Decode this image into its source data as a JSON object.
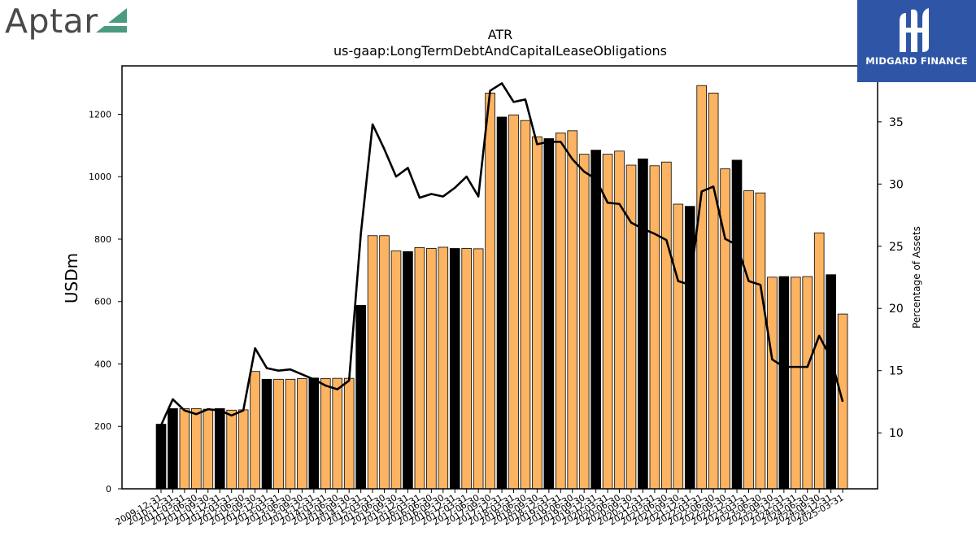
{
  "brand_left": {
    "name": "Aptar",
    "accent": "#4a9b7f"
  },
  "brand_right": {
    "name": "MIDGARD FINANCE",
    "bg": "#2f56a6"
  },
  "colors": {
    "bar_default": "#fdb462",
    "bar_highlight": "#000000",
    "line": "#000000"
  },
  "chart_data": {
    "type": "bar",
    "title": "ATR",
    "subtitle": "us-gaap:LongTermDebtAndCapitalLeaseObligations",
    "ylabel": "USDm",
    "y2label": "Percentage of Assets",
    "ylim": [
      0,
      1355
    ],
    "y2lim": [
      5.5,
      39.5
    ],
    "yticks": [
      0,
      200,
      400,
      600,
      800,
      1000,
      1200
    ],
    "y2ticks": [
      10,
      15,
      20,
      25,
      30,
      35
    ],
    "grid": false,
    "categories": [
      "2009-12-31",
      "2010-12-31",
      "2011-03-31",
      "2011-06-30",
      "2011-09-30",
      "2011-12-31",
      "2012-03-31",
      "2012-06-30",
      "2012-09-30",
      "2012-12-31",
      "2013-03-31",
      "2013-06-30",
      "2013-09-30",
      "2013-12-31",
      "2014-03-31",
      "2014-06-30",
      "2014-09-30",
      "2014-12-31",
      "2015-03-31",
      "2015-06-30",
      "2015-09-30",
      "2015-12-31",
      "2016-03-31",
      "2016-06-30",
      "2016-09-30",
      "2016-12-31",
      "2017-03-31",
      "2017-06-30",
      "2017-09-30",
      "2017-12-31",
      "2018-03-31",
      "2018-06-30",
      "2018-09-30",
      "2018-12-31",
      "2019-03-31",
      "2019-06-30",
      "2019-09-30",
      "2019-12-31",
      "2020-03-31",
      "2020-06-30",
      "2020-09-30",
      "2020-12-31",
      "2021-03-31",
      "2021-06-30",
      "2021-09-30",
      "2021-12-31",
      "2022-03-31",
      "2022-06-30",
      "2022-09-30",
      "2022-12-31",
      "2023-03-31",
      "2023-06-30",
      "2023-09-30",
      "2023-12-31",
      "2024-03-31",
      "2024-06-30",
      "2024-09-30",
      "2024-12-31",
      "2025-03-31"
    ],
    "series": [
      {
        "axis": "left",
        "values": [
          207,
          257,
          257,
          257,
          255,
          257,
          252,
          253,
          376,
          351,
          351,
          351,
          353,
          355,
          353,
          354,
          354,
          588,
          811,
          811,
          762,
          760,
          773,
          770,
          774,
          770,
          770,
          769,
          1268,
          1191,
          1198,
          1180,
          1128,
          1122,
          1140,
          1147,
          1072,
          1085,
          1072,
          1082,
          1037,
          1057,
          1035,
          1047,
          912,
          905,
          1292,
          1268,
          1025,
          1053,
          955,
          948,
          678,
          680,
          678,
          680,
          820,
          686,
          560
        ],
        "highlight": [
          0,
          1,
          5,
          9,
          13,
          17,
          21,
          25,
          29,
          33,
          37,
          41,
          45,
          49,
          53,
          57
        ]
      },
      {
        "axis": "right",
        "type": "line",
        "values": [
          10.6,
          12.7,
          11.8,
          11.5,
          11.9,
          11.8,
          11.4,
          11.8,
          16.8,
          15.2,
          15.0,
          15.1,
          14.7,
          14.3,
          13.8,
          13.5,
          14.2,
          26.0,
          34.8,
          32.8,
          30.6,
          31.3,
          28.9,
          29.2,
          29.0,
          29.7,
          30.6,
          29.0,
          37.5,
          38.1,
          36.6,
          36.8,
          33.2,
          33.4,
          33.4,
          32.0,
          31.0,
          30.4,
          28.5,
          28.4,
          26.9,
          26.4,
          26.0,
          25.5,
          22.2,
          21.9,
          29.4,
          29.8,
          25.6,
          25.1,
          22.2,
          21.9,
          15.9,
          15.3,
          15.3,
          15.3,
          17.8,
          16.0,
          12.5
        ]
      }
    ]
  }
}
